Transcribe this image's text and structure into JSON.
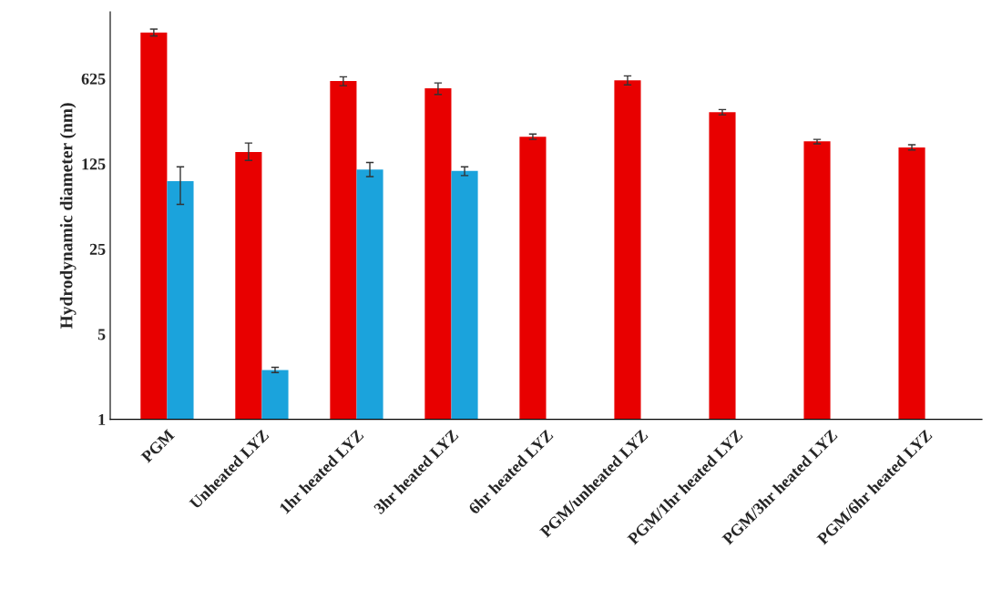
{
  "chart_data": {
    "type": "bar",
    "ylabel": "Hydrodynamic diameter (nm)",
    "categories": [
      "PGM",
      "Unheated LYZ",
      "1hr heated LYZ",
      "3hr heated LYZ",
      "6hr heated LYZ",
      "PGM/unheated LYZ",
      "PGM/1hr heated LYZ",
      "PGM/3hr heated LYZ",
      "PGM/6hr heated LYZ"
    ],
    "series": [
      {
        "color": "#e80000",
        "values": [
          1490,
          156,
          596,
          520,
          208,
          604,
          331,
          191,
          170
        ],
        "errors": [
          [
            1400,
            1590
          ],
          [
            133,
            185
          ],
          [
            547,
            646
          ],
          [
            463,
            575
          ],
          [
            198,
            219
          ],
          [
            555,
            658
          ],
          [
            315,
            348
          ],
          [
            182,
            198
          ],
          [
            162,
            179
          ]
        ]
      },
      {
        "color": "#1ba3dc",
        "values": [
          90,
          2.54,
          112,
          109,
          null,
          null,
          null,
          null,
          null
        ],
        "errors": [
          [
            58,
            118
          ],
          [
            2.42,
            2.67
          ],
          [
            98,
            128
          ],
          [
            100,
            118
          ],
          null,
          null,
          null,
          null,
          null
        ]
      }
    ],
    "log": "y",
    "ylim": [
      1,
      2200
    ],
    "yticks": [
      1,
      5,
      25,
      125,
      625
    ],
    "grid": false,
    "legend": false
  }
}
